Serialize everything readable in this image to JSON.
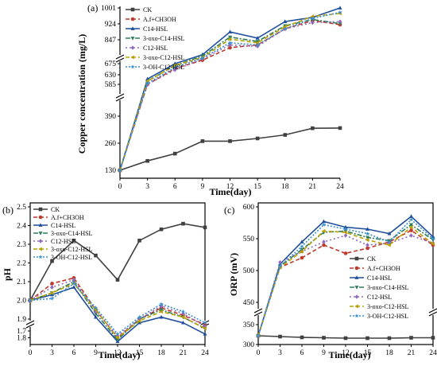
{
  "figure": {
    "legend_entries": [
      {
        "name": "CK",
        "color": "#404040",
        "dash": "",
        "marker": "square"
      },
      {
        "name": "A.f+CH3OH",
        "color": "#c0392b",
        "dash": "5,3",
        "marker": "circle"
      },
      {
        "name": "C14-HSL",
        "color": "#1f4e9c",
        "dash": "",
        "marker": "triangle"
      },
      {
        "name": "3-oxo-C14-HSL",
        "color": "#2e7d5b",
        "dash": "6,2,2,2",
        "marker": "triangle-down"
      },
      {
        "name": "C12-HSL",
        "color": "#8e6bbf",
        "dash": "2,3",
        "marker": "diamond"
      },
      {
        "name": "3-oxo-C12-HSL",
        "color": "#b8a000",
        "dash": "5,3",
        "marker": "triangle-left"
      },
      {
        "name": "3-OH-C12-HSL",
        "color": "#3a8fd0",
        "dash": "2,2",
        "marker": "star"
      }
    ]
  },
  "chart_data": [
    {
      "panel": "(a)",
      "type": "line",
      "xlabel": "Time(day)",
      "ylabel": "Copper concentration (mg/L)",
      "x": [
        0,
        3,
        6,
        9,
        12,
        15,
        18,
        21,
        24
      ],
      "xticks": [
        "0",
        "3",
        "6",
        "9",
        "12",
        "15",
        "18",
        "21",
        "24"
      ],
      "yaxis_break": {
        "lower": [
          100,
          420
        ],
        "upper": [
          585,
          1005
        ]
      },
      "yticks_lower": [
        "130",
        "260",
        "390"
      ],
      "yticks_upper": [
        "585",
        "630",
        "675",
        "847",
        "924",
        "1001"
      ],
      "legend_position": "top-left",
      "series": [
        {
          "name": "CK",
          "values": [
            130,
            175,
            210,
            270,
            270,
            283,
            300,
            332,
            333
          ]
        },
        {
          "name": "A.f+CH3OH",
          "values": [
            130,
            585,
            655,
            700,
            790,
            810,
            900,
            940,
            920
          ]
        },
        {
          "name": "C14-HSL",
          "values": [
            130,
            610,
            675,
            740,
            885,
            855,
            935,
            955,
            1001
          ]
        },
        {
          "name": "3-oxo-C14-HSL",
          "values": [
            130,
            600,
            668,
            730,
            860,
            835,
            915,
            945,
            925
          ]
        },
        {
          "name": "C12-HSL",
          "values": [
            130,
            585,
            650,
            710,
            810,
            800,
            900,
            930,
            935
          ]
        },
        {
          "name": "3-oxo-C12-HSL",
          "values": [
            130,
            600,
            668,
            720,
            850,
            825,
            910,
            960,
            975
          ]
        },
        {
          "name": "3-OH-C12-HSL",
          "values": [
            130,
            590,
            660,
            715,
            825,
            810,
            900,
            950,
            980
          ]
        }
      ]
    },
    {
      "panel": "(b)",
      "type": "line",
      "xlabel": "Time(day)",
      "ylabel": "pH",
      "x": [
        0,
        3,
        6,
        9,
        12,
        15,
        18,
        21,
        24
      ],
      "xticks": [
        "0",
        "3",
        "6",
        "9",
        "12",
        "15",
        "18",
        "21",
        "24"
      ],
      "ylim": [
        1.7,
        2.5
      ],
      "yaxis_break": [
        1.75,
        1.78
      ],
      "yticks": [
        "1.7",
        "1.8",
        "1.9",
        "2.0",
        "2.1",
        "2.2",
        "2.3",
        "2.4",
        "2.5"
      ],
      "legend_position": "top-left",
      "series": [
        {
          "name": "CK",
          "values": [
            2.0,
            2.21,
            2.32,
            2.24,
            2.11,
            2.32,
            2.38,
            2.41,
            2.39
          ]
        },
        {
          "name": "A.f+CH3OH",
          "values": [
            2.0,
            2.09,
            2.12,
            1.95,
            1.8,
            1.9,
            1.96,
            1.92,
            1.87
          ]
        },
        {
          "name": "C14-HSL",
          "values": [
            2.0,
            2.03,
            2.07,
            1.91,
            1.78,
            1.88,
            1.91,
            1.88,
            1.82
          ]
        },
        {
          "name": "3-oxo-C14-HSL",
          "values": [
            2.0,
            2.04,
            2.1,
            1.93,
            1.79,
            1.9,
            1.95,
            1.91,
            1.85
          ]
        },
        {
          "name": "C12-HSL",
          "values": [
            2.0,
            2.07,
            2.11,
            1.94,
            1.81,
            1.9,
            1.97,
            1.93,
            1.86
          ]
        },
        {
          "name": "3-oxo-C12-HSL",
          "values": [
            2.0,
            2.04,
            2.09,
            1.95,
            1.8,
            1.89,
            1.94,
            1.91,
            1.85
          ]
        },
        {
          "name": "3-OH-C12-HSL",
          "values": [
            2.0,
            2.01,
            2.09,
            1.96,
            1.82,
            1.91,
            1.98,
            1.94,
            1.88
          ]
        }
      ]
    },
    {
      "panel": "(c)",
      "type": "line",
      "xlabel": "Time(day)",
      "ylabel": "ORP (mV)",
      "x": [
        0,
        3,
        6,
        9,
        12,
        15,
        18,
        21,
        24
      ],
      "xticks": [
        "0",
        "3",
        "6",
        "9",
        "12",
        "15",
        "18",
        "21",
        "24"
      ],
      "yaxis_break": {
        "lower": [
          300,
          345
        ],
        "upper": [
          440,
          600
        ]
      },
      "yticks_lower": [
        "300",
        "350"
      ],
      "yticks_upper": [
        "450",
        "500",
        "550",
        "600"
      ],
      "legend_position": "bottom-right",
      "series": [
        {
          "name": "CK",
          "values": [
            322,
            320,
            318,
            317,
            316,
            316,
            316,
            317,
            317
          ]
        },
        {
          "name": "A.f+CH3OH",
          "values": [
            322,
            505,
            520,
            540,
            527,
            535,
            545,
            563,
            540
          ]
        },
        {
          "name": "C14-HSL",
          "values": [
            322,
            510,
            545,
            577,
            568,
            565,
            558,
            585,
            553
          ]
        },
        {
          "name": "3-oxo-C14-HSL",
          "values": [
            322,
            507,
            533,
            560,
            562,
            552,
            547,
            572,
            548
          ]
        },
        {
          "name": "C12-HSL",
          "values": [
            322,
            513,
            530,
            545,
            555,
            540,
            543,
            555,
            543
          ]
        },
        {
          "name": "3-oxo-C12-HSL",
          "values": [
            322,
            505,
            530,
            562,
            560,
            548,
            540,
            568,
            542
          ]
        },
        {
          "name": "3-OH-C12-HSL",
          "values": [
            322,
            507,
            538,
            572,
            565,
            558,
            545,
            580,
            550
          ]
        }
      ]
    }
  ]
}
